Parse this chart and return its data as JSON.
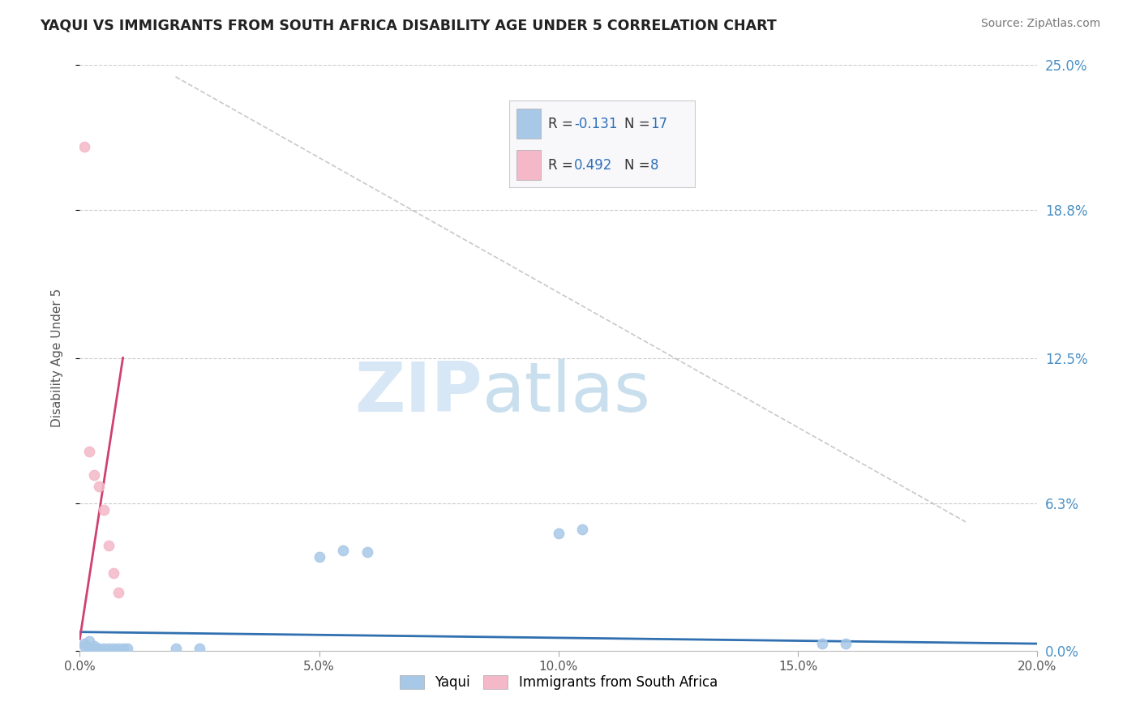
{
  "title": "YAQUI VS IMMIGRANTS FROM SOUTH AFRICA DISABILITY AGE UNDER 5 CORRELATION CHART",
  "source": "Source: ZipAtlas.com",
  "ylabel": "Disability Age Under 5",
  "xlim": [
    0.0,
    0.2
  ],
  "ylim": [
    0.0,
    0.25
  ],
  "ytick_labels": [
    "0.0%",
    "6.3%",
    "12.5%",
    "18.8%",
    "25.0%"
  ],
  "ytick_values": [
    0.0,
    0.063,
    0.125,
    0.188,
    0.25
  ],
  "xtick_labels": [
    "0.0%",
    "",
    "5.0%",
    "",
    "10.0%",
    "",
    "15.0%",
    "",
    "20.0%"
  ],
  "xtick_values": [
    0.0,
    0.025,
    0.05,
    0.075,
    0.1,
    0.125,
    0.15,
    0.175,
    0.2
  ],
  "legend_labels": [
    "Yaqui",
    "Immigrants from South Africa"
  ],
  "blue_color": "#a8c8e8",
  "pink_color": "#f4b8c8",
  "blue_line_color": "#3070b0",
  "pink_line_color": "#d04070",
  "watermark_zip": "ZIP",
  "watermark_atlas": "atlas",
  "yaqui_x": [
    0.001,
    0.001,
    0.002,
    0.002,
    0.003,
    0.003,
    0.004,
    0.005,
    0.006,
    0.007,
    0.008,
    0.009,
    0.01,
    0.02,
    0.025,
    0.05,
    0.055,
    0.06,
    0.1,
    0.105,
    0.155,
    0.16
  ],
  "yaqui_y": [
    0.002,
    0.003,
    0.001,
    0.004,
    0.001,
    0.002,
    0.001,
    0.001,
    0.001,
    0.001,
    0.001,
    0.001,
    0.001,
    0.001,
    0.001,
    0.04,
    0.043,
    0.042,
    0.05,
    0.052,
    0.003,
    0.003
  ],
  "sa_x": [
    0.001,
    0.002,
    0.003,
    0.004,
    0.005,
    0.006,
    0.007,
    0.008
  ],
  "sa_y": [
    0.215,
    0.085,
    0.075,
    0.07,
    0.06,
    0.045,
    0.033,
    0.025
  ],
  "blue_trend_x": [
    0.0,
    0.2
  ],
  "blue_trend_y": [
    0.008,
    0.003
  ],
  "pink_trend_x": [
    0.0,
    0.009
  ],
  "pink_trend_y": [
    0.005,
    0.125
  ],
  "ref_line_x": [
    0.02,
    0.185
  ],
  "ref_line_y": [
    0.245,
    0.055
  ]
}
